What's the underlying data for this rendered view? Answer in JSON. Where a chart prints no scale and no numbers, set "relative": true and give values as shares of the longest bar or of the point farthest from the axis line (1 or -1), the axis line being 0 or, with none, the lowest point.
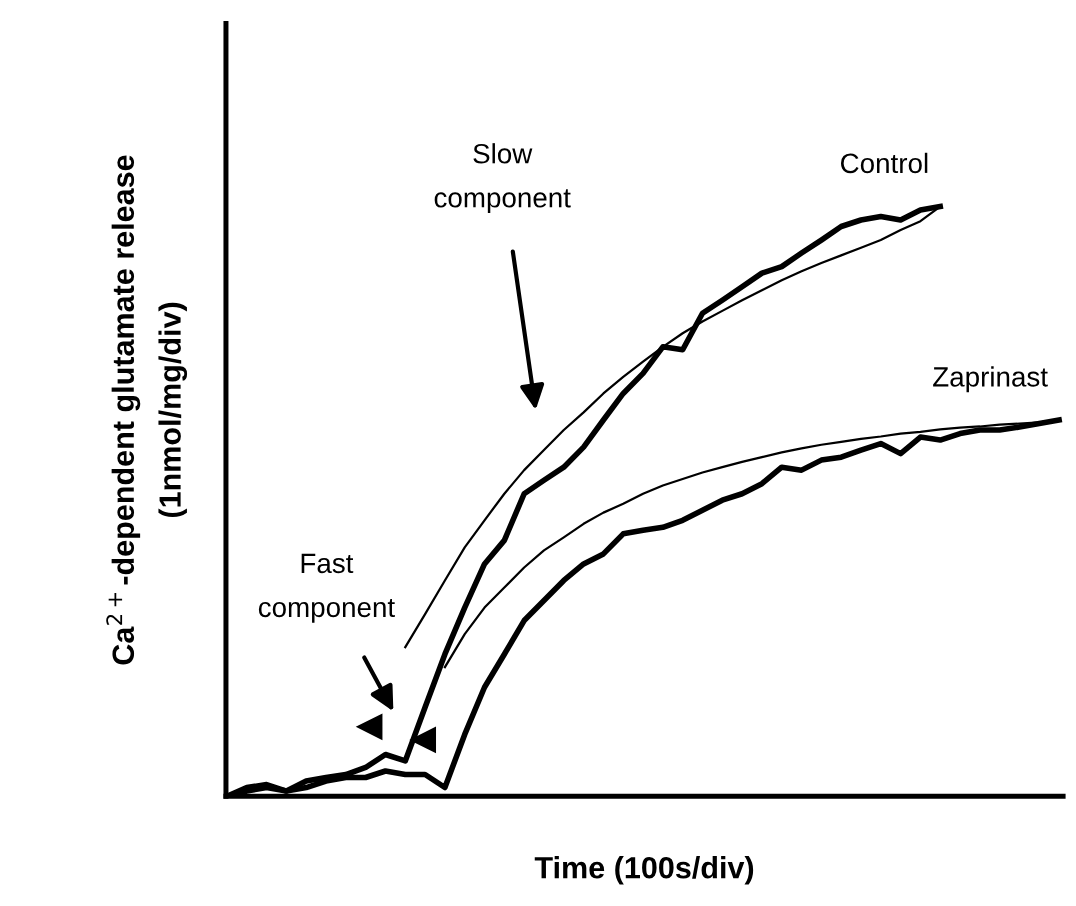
{
  "chart_data": {
    "type": "line",
    "relative": true,
    "xlabel": "Time (100s/div)",
    "ylabel": "Ca$^{2+}$-dependent glutamate release\n(1nmol/mg/div)",
    "categories": [
      null,
      null,
      null,
      null,
      null,
      null,
      null,
      null,
      null,
      null,
      null,
      null,
      null,
      null,
      null,
      null,
      null,
      null,
      null,
      null,
      null,
      null,
      null,
      null,
      null,
      null,
      null,
      null,
      null,
      null,
      null,
      null,
      null,
      null,
      null,
      null,
      null,
      null,
      null,
      null,
      null,
      null,
      null
    ],
    "annotations": [
      "Slow component",
      "Fast component"
    ],
    "marker": "none",
    "line_style": "solid",
    "grid": false,
    "legend": false,
    "series": [
      {
        "name": "Control",
        "color": "#000000",
        "values": [
          0,
          0.015,
          0.02,
          0.009,
          0.026,
          0.032,
          0.037,
          0.049,
          0.071,
          0.06,
          0.151,
          0.241,
          0.32,
          0.394,
          0.434,
          0.513,
          0.536,
          0.558,
          0.592,
          0.638,
          0.683,
          0.717,
          0.762,
          0.757,
          0.819,
          0.841,
          0.864,
          0.887,
          0.898,
          0.921,
          0.943,
          0.966,
          0.977,
          0.983,
          0.977,
          0.994,
          1,
          null,
          null,
          null,
          null,
          null,
          null
        ]
      },
      {
        "color": "#000000",
        "values": [
          null,
          null,
          null,
          null,
          null,
          null,
          null,
          null,
          null,
          0.253,
          0.309,
          0.366,
          0.422,
          0.468,
          0.513,
          0.553,
          0.587,
          0.621,
          0.651,
          0.683,
          0.711,
          0.737,
          0.762,
          0.785,
          0.805,
          0.823,
          0.841,
          0.858,
          0.875,
          0.89,
          0.904,
          0.917,
          0.93,
          0.943,
          0.96,
          0.975,
          1,
          null,
          null,
          null,
          null,
          null,
          null
        ]
      },
      {
        "name": "Zaprinast",
        "color": "#000000",
        "values": [
          0,
          0.009,
          0.015,
          0.009,
          0.015,
          0.026,
          0.032,
          0.032,
          0.043,
          0.037,
          0.037,
          0.015,
          0.105,
          0.185,
          0.241,
          0.298,
          0.332,
          0.366,
          0.394,
          0.411,
          0.445,
          0.451,
          0.456,
          0.468,
          0.485,
          0.502,
          0.513,
          0.53,
          0.558,
          0.553,
          0.57,
          0.575,
          0.587,
          0.598,
          0.581,
          0.609,
          0.604,
          0.615,
          0.621,
          0.621,
          0.626,
          0.632,
          0.638
        ]
      },
      {
        "color": "#000000",
        "values": [
          null,
          null,
          null,
          null,
          null,
          null,
          null,
          null,
          null,
          null,
          null,
          0.219,
          0.275,
          0.32,
          0.354,
          0.388,
          0.417,
          0.439,
          0.462,
          0.481,
          0.496,
          0.513,
          0.527,
          0.538,
          0.549,
          0.558,
          0.567,
          0.575,
          0.583,
          0.59,
          0.596,
          0.601,
          0.606,
          0.61,
          0.615,
          0.618,
          0.622,
          0.625,
          0.627,
          0.63,
          0.632,
          0.634,
          0.638
        ]
      }
    ]
  }
}
